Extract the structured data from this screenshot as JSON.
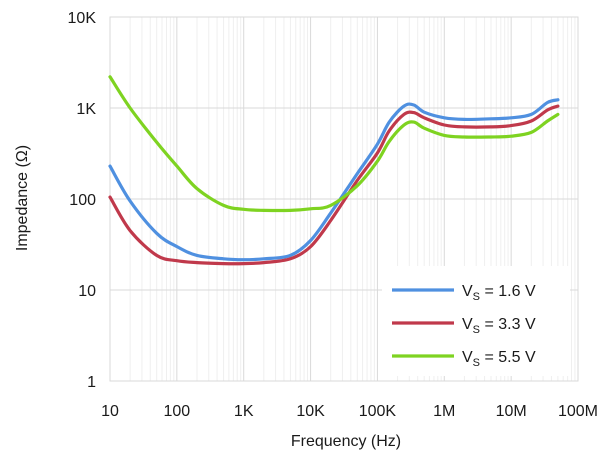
{
  "chart_data": {
    "type": "line",
    "xlabel": "Frequency (Hz)",
    "ylabel": "Impedance (Ω)",
    "xscale": "log",
    "yscale": "log",
    "xlim": [
      10,
      100000000
    ],
    "ylim": [
      1,
      10000
    ],
    "grid": true,
    "legend_position": "bottom-right",
    "x_ticks": [
      {
        "value": 10,
        "label": "10"
      },
      {
        "value": 100,
        "label": "100"
      },
      {
        "value": 1000,
        "label": "1K"
      },
      {
        "value": 10000,
        "label": "10K"
      },
      {
        "value": 100000,
        "label": "100K"
      },
      {
        "value": 1000000,
        "label": "1M"
      },
      {
        "value": 10000000,
        "label": "10M"
      },
      {
        "value": 100000000,
        "label": "100M"
      }
    ],
    "y_ticks": [
      {
        "value": 1,
        "label": "1"
      },
      {
        "value": 10,
        "label": "10"
      },
      {
        "value": 100,
        "label": "100"
      },
      {
        "value": 1000,
        "label": "1K"
      },
      {
        "value": 10000,
        "label": "10K"
      }
    ],
    "series": [
      {
        "name": "VS = 1.6 V",
        "label_main": "V",
        "label_sub": "S",
        "label_rest": " = 1.6 V",
        "color": "#4f90e0",
        "points": [
          [
            10,
            230
          ],
          [
            20,
            95
          ],
          [
            50,
            42
          ],
          [
            100,
            30
          ],
          [
            200,
            24
          ],
          [
            500,
            22
          ],
          [
            1000,
            21.5
          ],
          [
            2000,
            22
          ],
          [
            5000,
            24
          ],
          [
            10000,
            35
          ],
          [
            20000,
            70
          ],
          [
            50000,
            190
          ],
          [
            100000,
            400
          ],
          [
            150000,
            700
          ],
          [
            250000,
            1050
          ],
          [
            350000,
            1080
          ],
          [
            500000,
            900
          ],
          [
            1000000,
            780
          ],
          [
            2000000,
            750
          ],
          [
            5000000,
            760
          ],
          [
            10000000,
            780
          ],
          [
            20000000,
            850
          ],
          [
            35000000,
            1150
          ],
          [
            50000000,
            1230
          ]
        ]
      },
      {
        "name": "VS = 3.3 V",
        "label_main": "V",
        "label_sub": "S",
        "label_rest": " = 3.3 V",
        "color": "#c0394b",
        "points": [
          [
            10,
            105
          ],
          [
            20,
            45
          ],
          [
            50,
            24
          ],
          [
            100,
            21
          ],
          [
            200,
            20
          ],
          [
            500,
            19.5
          ],
          [
            1000,
            19.5
          ],
          [
            2000,
            20
          ],
          [
            5000,
            22
          ],
          [
            10000,
            30
          ],
          [
            20000,
            58
          ],
          [
            50000,
            160
          ],
          [
            100000,
            320
          ],
          [
            150000,
            560
          ],
          [
            250000,
            850
          ],
          [
            350000,
            890
          ],
          [
            500000,
            780
          ],
          [
            1000000,
            650
          ],
          [
            2000000,
            620
          ],
          [
            5000000,
            620
          ],
          [
            10000000,
            640
          ],
          [
            20000000,
            720
          ],
          [
            35000000,
            950
          ],
          [
            50000000,
            1050
          ]
        ]
      },
      {
        "name": "VS = 5.5 V",
        "label_main": "V",
        "label_sub": "S",
        "label_rest": " = 5.5 V",
        "color": "#7ed321",
        "points": [
          [
            10,
            2200
          ],
          [
            20,
            1000
          ],
          [
            50,
            420
          ],
          [
            100,
            230
          ],
          [
            200,
            130
          ],
          [
            500,
            85
          ],
          [
            1000,
            77
          ],
          [
            2000,
            75
          ],
          [
            5000,
            75
          ],
          [
            10000,
            78
          ],
          [
            20000,
            85
          ],
          [
            50000,
            140
          ],
          [
            100000,
            260
          ],
          [
            150000,
            430
          ],
          [
            250000,
            650
          ],
          [
            350000,
            700
          ],
          [
            500000,
            600
          ],
          [
            1000000,
            500
          ],
          [
            2000000,
            480
          ],
          [
            5000000,
            480
          ],
          [
            10000000,
            490
          ],
          [
            20000000,
            540
          ],
          [
            35000000,
            720
          ],
          [
            50000000,
            850
          ]
        ]
      }
    ]
  }
}
